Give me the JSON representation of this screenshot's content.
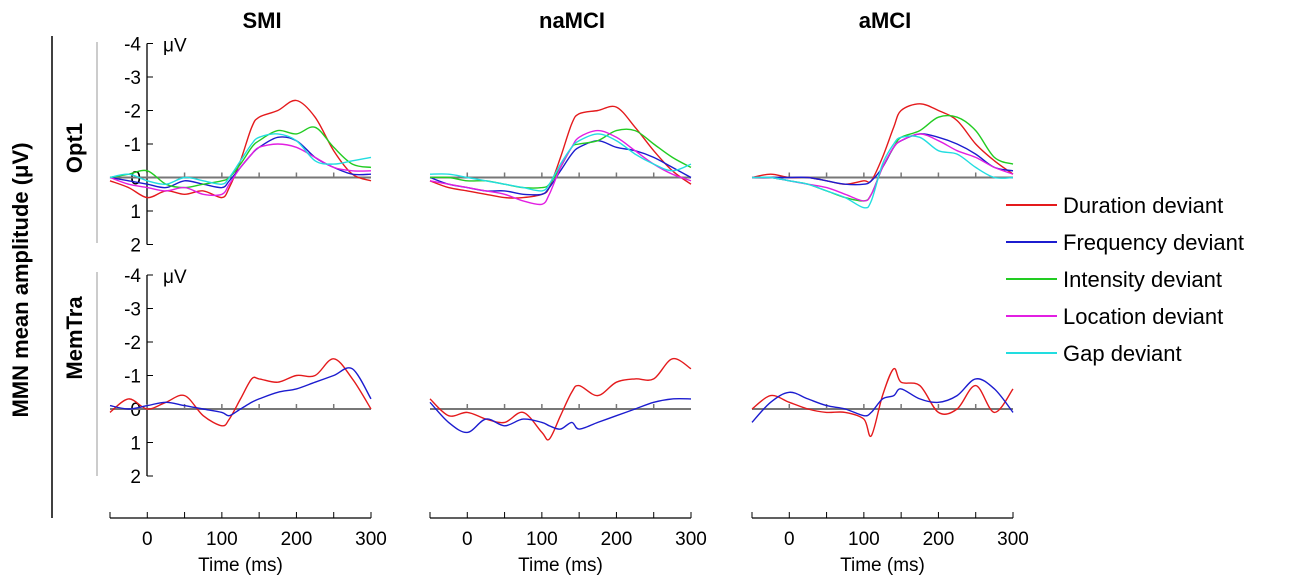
{
  "chart_data": {
    "type": "line",
    "ylabel": "MMN mean amplitude (μV)",
    "xlabel": "Time (ms)",
    "unit_label": "μV",
    "columns": [
      "SMI",
      "naMCI",
      "aMCI"
    ],
    "rows": [
      "Opt1",
      "MemTra"
    ],
    "xlim": [
      -50,
      300
    ],
    "ylim": [
      -4,
      2
    ],
    "y_inverted": true,
    "y_ticks": [
      -4,
      -3,
      -2,
      -1,
      0,
      1,
      2
    ],
    "y_tick_labels": [
      "-4",
      "-3",
      "-2",
      "-1",
      "0",
      "1",
      "2"
    ],
    "x_ticks": [
      0,
      100,
      200,
      300
    ],
    "x_tick_labels": [
      "0",
      "100",
      "200",
      "300"
    ],
    "legend": [
      {
        "name": "Duration deviant",
        "color": "#e41a1c"
      },
      {
        "name": "Frequency deviant",
        "color": "#1c1ccf"
      },
      {
        "name": "Intensity deviant",
        "color": "#22cc22"
      },
      {
        "name": "Location deviant",
        "color": "#e21fe2"
      },
      {
        "name": "Gap deviant",
        "color": "#22dde0"
      }
    ],
    "panels": [
      {
        "row": "Opt1",
        "column": "SMI",
        "series": [
          {
            "name": "Duration deviant",
            "x": [
              -50,
              -25,
              0,
              25,
              50,
              75,
              100,
              110,
              125,
              140,
              150,
              175,
              200,
              225,
              250,
              275,
              300
            ],
            "y": [
              0.1,
              0.3,
              0.6,
              0.4,
              0.5,
              0.4,
              0.6,
              0.3,
              -0.5,
              -1.5,
              -1.8,
              -2.0,
              -2.3,
              -1.8,
              -0.8,
              -0.1,
              0.1
            ]
          },
          {
            "name": "Frequency deviant",
            "x": [
              -50,
              -25,
              0,
              25,
              50,
              75,
              100,
              110,
              125,
              140,
              150,
              175,
              200,
              225,
              250,
              275,
              300
            ],
            "y": [
              0.0,
              0.1,
              0.2,
              0.3,
              0.1,
              0.2,
              0.3,
              0.1,
              -0.3,
              -0.7,
              -0.9,
              -1.2,
              -1.1,
              -0.6,
              -0.3,
              -0.1,
              -0.1
            ]
          },
          {
            "name": "Intensity deviant",
            "x": [
              -50,
              -25,
              0,
              25,
              50,
              75,
              100,
              110,
              125,
              140,
              150,
              175,
              200,
              225,
              250,
              275,
              300
            ],
            "y": [
              0.0,
              -0.1,
              -0.2,
              0.2,
              0.3,
              0.2,
              0.1,
              0.0,
              -0.4,
              -0.9,
              -1.1,
              -1.4,
              -1.3,
              -1.5,
              -0.9,
              -0.4,
              -0.3
            ]
          },
          {
            "name": "Location deviant",
            "x": [
              -50,
              -25,
              0,
              25,
              50,
              75,
              100,
              110,
              125,
              140,
              150,
              175,
              200,
              225,
              250,
              275,
              300
            ],
            "y": [
              0.0,
              0.2,
              0.3,
              0.4,
              0.3,
              0.5,
              0.5,
              0.2,
              -0.3,
              -0.7,
              -0.9,
              -1.0,
              -0.9,
              -0.6,
              -0.3,
              -0.2,
              -0.2
            ]
          },
          {
            "name": "Gap deviant",
            "x": [
              -50,
              -25,
              0,
              25,
              50,
              75,
              100,
              110,
              125,
              140,
              150,
              175,
              200,
              225,
              250,
              275,
              300
            ],
            "y": [
              0.0,
              -0.1,
              0.1,
              0.2,
              0.0,
              0.1,
              0.2,
              0.0,
              -0.5,
              -1.0,
              -1.2,
              -1.3,
              -1.1,
              -0.5,
              -0.4,
              -0.5,
              -0.6
            ]
          }
        ]
      },
      {
        "row": "Opt1",
        "column": "naMCI",
        "series": [
          {
            "name": "Duration deviant",
            "x": [
              -50,
              -25,
              0,
              25,
              50,
              75,
              100,
              110,
              125,
              140,
              150,
              175,
              200,
              225,
              250,
              275,
              300
            ],
            "y": [
              0.1,
              0.3,
              0.4,
              0.5,
              0.6,
              0.6,
              0.5,
              0.3,
              -0.6,
              -1.6,
              -1.9,
              -2.0,
              -2.1,
              -1.5,
              -0.8,
              -0.2,
              0.2
            ]
          },
          {
            "name": "Frequency deviant",
            "x": [
              -50,
              -25,
              0,
              25,
              50,
              75,
              100,
              110,
              125,
              140,
              150,
              175,
              200,
              225,
              250,
              275,
              300
            ],
            "y": [
              0.0,
              0.2,
              0.3,
              0.4,
              0.4,
              0.5,
              0.5,
              0.3,
              -0.2,
              -0.7,
              -0.9,
              -1.1,
              -0.9,
              -0.8,
              -0.6,
              -0.3,
              0.0
            ]
          },
          {
            "name": "Intensity deviant",
            "x": [
              -50,
              -25,
              0,
              25,
              50,
              75,
              100,
              110,
              125,
              140,
              150,
              175,
              200,
              225,
              250,
              275,
              300
            ],
            "y": [
              0.0,
              0.0,
              0.1,
              0.1,
              0.2,
              0.3,
              0.3,
              0.2,
              -0.3,
              -0.9,
              -1.0,
              -1.1,
              -1.4,
              -1.4,
              -1.0,
              -0.6,
              -0.3
            ]
          },
          {
            "name": "Location deviant",
            "x": [
              -50,
              -25,
              0,
              25,
              50,
              75,
              100,
              110,
              125,
              140,
              150,
              175,
              200,
              225,
              250,
              275,
              300
            ],
            "y": [
              0.1,
              0.2,
              0.3,
              0.4,
              0.5,
              0.7,
              0.8,
              0.5,
              -0.3,
              -0.9,
              -1.2,
              -1.4,
              -1.2,
              -0.8,
              -0.4,
              -0.1,
              0.1
            ]
          },
          {
            "name": "Gap deviant",
            "x": [
              -50,
              -25,
              0,
              25,
              50,
              75,
              100,
              110,
              125,
              140,
              150,
              175,
              200,
              225,
              250,
              275,
              300
            ],
            "y": [
              -0.1,
              -0.1,
              0.0,
              0.1,
              0.2,
              0.3,
              0.4,
              0.2,
              -0.4,
              -0.9,
              -1.1,
              -1.3,
              -1.1,
              -0.7,
              -0.4,
              -0.2,
              -0.4
            ]
          }
        ]
      },
      {
        "row": "Opt1",
        "column": "aMCI",
        "series": [
          {
            "name": "Duration deviant",
            "x": [
              -50,
              -25,
              0,
              25,
              50,
              75,
              100,
              110,
              125,
              140,
              150,
              175,
              200,
              225,
              250,
              275,
              300
            ],
            "y": [
              0.0,
              -0.1,
              0.0,
              0.0,
              0.1,
              0.2,
              0.1,
              0.1,
              -0.6,
              -1.5,
              -2.0,
              -2.2,
              -2.0,
              -1.7,
              -1.0,
              -0.5,
              -0.1
            ]
          },
          {
            "name": "Frequency deviant",
            "x": [
              -50,
              -25,
              0,
              25,
              50,
              75,
              100,
              110,
              125,
              140,
              150,
              175,
              200,
              225,
              250,
              275,
              300
            ],
            "y": [
              0.0,
              0.0,
              0.0,
              0.0,
              0.1,
              0.2,
              0.2,
              0.1,
              -0.3,
              -0.9,
              -1.1,
              -1.3,
              -1.2,
              -1.0,
              -0.7,
              -0.3,
              -0.2
            ]
          },
          {
            "name": "Intensity deviant",
            "x": [
              -50,
              -25,
              0,
              25,
              50,
              75,
              100,
              110,
              125,
              140,
              150,
              175,
              200,
              225,
              250,
              275,
              300
            ],
            "y": [
              0.0,
              0.0,
              0.1,
              0.2,
              0.4,
              0.6,
              0.7,
              0.5,
              -0.3,
              -0.9,
              -1.2,
              -1.4,
              -1.8,
              -1.8,
              -1.4,
              -0.6,
              -0.4
            ]
          },
          {
            "name": "Location deviant",
            "x": [
              -50,
              -25,
              0,
              25,
              50,
              75,
              100,
              110,
              125,
              140,
              150,
              175,
              200,
              225,
              250,
              275,
              300
            ],
            "y": [
              0.0,
              0.0,
              0.1,
              0.2,
              0.3,
              0.5,
              0.7,
              0.5,
              -0.3,
              -0.9,
              -1.1,
              -1.3,
              -1.1,
              -0.8,
              -0.6,
              -0.3,
              -0.1
            ]
          },
          {
            "name": "Gap deviant",
            "x": [
              -50,
              -25,
              0,
              25,
              50,
              75,
              100,
              110,
              125,
              140,
              150,
              175,
              200,
              225,
              250,
              275,
              300
            ],
            "y": [
              0.0,
              0.0,
              0.1,
              0.2,
              0.4,
              0.6,
              0.9,
              0.7,
              -0.4,
              -1.0,
              -1.2,
              -1.2,
              -0.8,
              -0.7,
              -0.3,
              0.0,
              0.0
            ]
          }
        ]
      },
      {
        "row": "MemTra",
        "column": "SMI",
        "series": [
          {
            "name": "Duration deviant",
            "x": [
              -50,
              -25,
              0,
              25,
              50,
              75,
              100,
              110,
              125,
              140,
              150,
              175,
              200,
              225,
              250,
              275,
              300
            ],
            "y": [
              0.1,
              -0.3,
              0.0,
              -0.2,
              -0.4,
              0.2,
              0.5,
              0.3,
              -0.3,
              -0.9,
              -0.9,
              -0.8,
              -1.0,
              -1.0,
              -1.5,
              -0.9,
              0.0
            ]
          },
          {
            "name": "Frequency deviant",
            "x": [
              -50,
              -25,
              0,
              25,
              50,
              75,
              100,
              110,
              125,
              140,
              150,
              175,
              200,
              225,
              250,
              275,
              300
            ],
            "y": [
              -0.1,
              0.0,
              -0.1,
              -0.2,
              -0.1,
              0.0,
              0.1,
              0.2,
              0.0,
              -0.2,
              -0.3,
              -0.5,
              -0.6,
              -0.8,
              -1.0,
              -1.2,
              -0.3
            ]
          }
        ]
      },
      {
        "row": "MemTra",
        "column": "naMCI",
        "series": [
          {
            "name": "Duration deviant",
            "x": [
              -50,
              -25,
              0,
              25,
              50,
              75,
              100,
              110,
              125,
              140,
              150,
              175,
              200,
              225,
              250,
              275,
              300
            ],
            "y": [
              -0.3,
              0.2,
              0.1,
              0.3,
              0.4,
              0.1,
              0.7,
              0.9,
              0.2,
              -0.5,
              -0.7,
              -0.4,
              -0.8,
              -0.9,
              -0.9,
              -1.5,
              -1.2
            ]
          },
          {
            "name": "Frequency deviant",
            "x": [
              -50,
              -25,
              0,
              25,
              50,
              75,
              100,
              110,
              125,
              140,
              150,
              175,
              200,
              225,
              250,
              275,
              300
            ],
            "y": [
              -0.2,
              0.4,
              0.7,
              0.3,
              0.5,
              0.3,
              0.4,
              0.5,
              0.6,
              0.4,
              0.6,
              0.4,
              0.2,
              0.0,
              -0.2,
              -0.3,
              -0.3
            ]
          }
        ]
      },
      {
        "row": "MemTra",
        "column": "aMCI",
        "series": [
          {
            "name": "Duration deviant",
            "x": [
              -50,
              -25,
              0,
              25,
              50,
              75,
              100,
              110,
              125,
              140,
              150,
              175,
              200,
              225,
              250,
              275,
              300
            ],
            "y": [
              0.0,
              -0.4,
              -0.2,
              0.0,
              0.1,
              0.1,
              0.3,
              0.8,
              -0.4,
              -1.2,
              -0.8,
              -0.7,
              0.1,
              0.0,
              -0.7,
              0.1,
              -0.6
            ]
          },
          {
            "name": "Frequency deviant",
            "x": [
              -50,
              -25,
              0,
              25,
              50,
              75,
              100,
              110,
              125,
              140,
              150,
              175,
              200,
              225,
              250,
              275,
              300
            ],
            "y": [
              0.4,
              -0.2,
              -0.5,
              -0.3,
              -0.1,
              0.0,
              0.2,
              0.1,
              -0.3,
              -0.4,
              -0.6,
              -0.3,
              -0.2,
              -0.4,
              -0.9,
              -0.6,
              0.1
            ]
          }
        ]
      }
    ]
  }
}
